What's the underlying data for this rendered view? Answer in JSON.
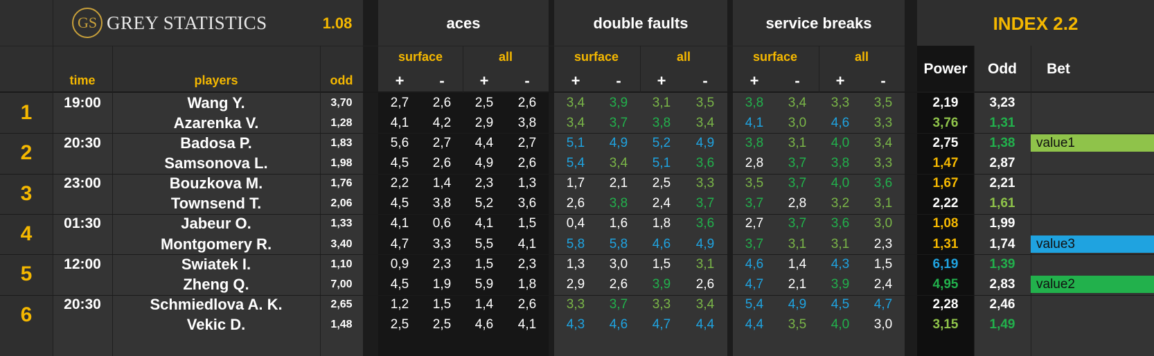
{
  "header": {
    "brand_initials": "GS",
    "brand_name": "GREY STATISTICS",
    "version": "1.08",
    "group_aces": "aces",
    "group_double_faults": "double faults",
    "group_service_breaks": "service breaks",
    "index_title": "INDEX 2.2",
    "sub_surface": "surface",
    "sub_all": "all",
    "plus": "+",
    "minus": "-",
    "col_time": "time",
    "col_players": "players",
    "col_odd": "odd",
    "col_power": "Power",
    "col_odd2": "Odd",
    "col_bet": "Bet"
  },
  "colors": {
    "background": "#1c1c1c",
    "header_bg": "#2f2f2f",
    "row_bg": "#333333",
    "aces_bg": "#151515",
    "index_bg": "#0d0d0d",
    "accent": "#f5b800",
    "green": "#7ab648",
    "dark_green": "#22b14c",
    "blue": "#1fa3e0"
  },
  "matches": [
    {
      "num": "1",
      "time": "19:00",
      "bet": "",
      "p": [
        {
          "name": "Wang Y.",
          "odd": "3,70",
          "aces": [
            "2,7",
            "2,6",
            "2,5",
            "2,6"
          ],
          "df": [
            [
              "3,4",
              "g"
            ],
            [
              "3,9",
              "dg"
            ],
            [
              "3,1",
              "g"
            ],
            [
              "3,5",
              "g"
            ]
          ],
          "sb": [
            [
              "3,8",
              "dg"
            ],
            [
              "3,4",
              "g"
            ],
            [
              "3,3",
              "g"
            ],
            [
              "3,5",
              "g"
            ]
          ],
          "power": [
            "2,19",
            "w"
          ],
          "odd2": [
            "3,23",
            "w"
          ]
        },
        {
          "name": "Azarenka V.",
          "odd": "1,28",
          "aces": [
            "4,1",
            "4,2",
            "2,9",
            "3,8"
          ],
          "df": [
            [
              "3,4",
              "g"
            ],
            [
              "3,7",
              "dg"
            ],
            [
              "3,8",
              "dg"
            ],
            [
              "3,4",
              "g"
            ]
          ],
          "sb": [
            [
              "4,1",
              "b"
            ],
            [
              "3,0",
              "g"
            ],
            [
              "4,6",
              "b"
            ],
            [
              "3,3",
              "g"
            ]
          ],
          "power": [
            "3,76",
            "lg"
          ],
          "odd2": [
            "1,31",
            "dg"
          ]
        }
      ]
    },
    {
      "num": "2",
      "time": "20:30",
      "bet": "value1",
      "p": [
        {
          "name": "Badosa P.",
          "odd": "1,83",
          "aces": [
            "5,6",
            "2,7",
            "4,4",
            "2,7"
          ],
          "df": [
            [
              "5,1",
              "b"
            ],
            [
              "4,9",
              "b"
            ],
            [
              "5,2",
              "b"
            ],
            [
              "4,9",
              "b"
            ]
          ],
          "sb": [
            [
              "3,8",
              "dg"
            ],
            [
              "3,1",
              "g"
            ],
            [
              "4,0",
              "dg"
            ],
            [
              "3,4",
              "g"
            ]
          ],
          "power": [
            "2,75",
            "w"
          ],
          "odd2": [
            "1,38",
            "dg"
          ]
        },
        {
          "name": "Samsonova L.",
          "odd": "1,98",
          "aces": [
            "4,5",
            "2,6",
            "4,9",
            "2,6"
          ],
          "df": [
            [
              "5,4",
              "b"
            ],
            [
              "3,4",
              "g"
            ],
            [
              "5,1",
              "b"
            ],
            [
              "3,6",
              "dg"
            ]
          ],
          "sb": [
            [
              "2,8",
              "w"
            ],
            [
              "3,7",
              "dg"
            ],
            [
              "3,8",
              "dg"
            ],
            [
              "3,3",
              "g"
            ]
          ],
          "power": [
            "1,47",
            "y"
          ],
          "odd2": [
            "2,87",
            "w"
          ]
        }
      ]
    },
    {
      "num": "3",
      "time": "23:00",
      "bet": "",
      "p": [
        {
          "name": "Bouzkova M.",
          "odd": "1,76",
          "aces": [
            "2,2",
            "1,4",
            "2,3",
            "1,3"
          ],
          "df": [
            [
              "1,7",
              "w"
            ],
            [
              "2,1",
              "w"
            ],
            [
              "2,5",
              "w"
            ],
            [
              "3,3",
              "g"
            ]
          ],
          "sb": [
            [
              "3,5",
              "g"
            ],
            [
              "3,7",
              "dg"
            ],
            [
              "4,0",
              "dg"
            ],
            [
              "3,6",
              "dg"
            ]
          ],
          "power": [
            "1,67",
            "y"
          ],
          "odd2": [
            "2,21",
            "w"
          ]
        },
        {
          "name": "Townsend T.",
          "odd": "2,06",
          "aces": [
            "4,5",
            "3,8",
            "5,2",
            "3,6"
          ],
          "df": [
            [
              "2,6",
              "w"
            ],
            [
              "3,8",
              "dg"
            ],
            [
              "2,4",
              "w"
            ],
            [
              "3,7",
              "dg"
            ]
          ],
          "sb": [
            [
              "3,7",
              "dg"
            ],
            [
              "2,8",
              "w"
            ],
            [
              "3,2",
              "g"
            ],
            [
              "3,1",
              "g"
            ]
          ],
          "power": [
            "2,22",
            "w"
          ],
          "odd2": [
            "1,61",
            "lg"
          ]
        }
      ]
    },
    {
      "num": "4",
      "time": "01:30",
      "bet": "",
      "p": [
        {
          "name": "Jabeur O.",
          "odd": "1,33",
          "aces": [
            "4,1",
            "0,6",
            "4,1",
            "1,5"
          ],
          "df": [
            [
              "0,4",
              "w"
            ],
            [
              "1,6",
              "w"
            ],
            [
              "1,8",
              "w"
            ],
            [
              "3,6",
              "dg"
            ]
          ],
          "sb": [
            [
              "2,7",
              "w"
            ],
            [
              "3,7",
              "dg"
            ],
            [
              "3,6",
              "dg"
            ],
            [
              "3,0",
              "g"
            ]
          ],
          "power": [
            "1,08",
            "y"
          ],
          "odd2": [
            "1,99",
            "w"
          ]
        },
        {
          "name": "Montgomery R.",
          "odd": "3,40",
          "aces": [
            "4,7",
            "3,3",
            "5,5",
            "4,1"
          ],
          "df": [
            [
              "5,8",
              "b"
            ],
            [
              "5,8",
              "b"
            ],
            [
              "4,6",
              "b"
            ],
            [
              "4,9",
              "b"
            ]
          ],
          "sb": [
            [
              "3,7",
              "dg"
            ],
            [
              "3,1",
              "g"
            ],
            [
              "3,1",
              "g"
            ],
            [
              "2,3",
              "w"
            ]
          ],
          "power": [
            "1,31",
            "y"
          ],
          "odd2": [
            "1,74",
            "w"
          ]
        }
      ]
    },
    {
      "num": "5",
      "time": "12:00",
      "bet": "",
      "p": [
        {
          "name": "Swiatek I.",
          "odd": "1,10",
          "aces": [
            "0,9",
            "2,3",
            "1,5",
            "2,3"
          ],
          "df": [
            [
              "1,3",
              "w"
            ],
            [
              "3,0",
              "w"
            ],
            [
              "1,5",
              "w"
            ],
            [
              "3,1",
              "g"
            ]
          ],
          "sb": [
            [
              "4,6",
              "b"
            ],
            [
              "1,4",
              "w"
            ],
            [
              "4,3",
              "b"
            ],
            [
              "1,5",
              "w"
            ]
          ],
          "power": [
            "6,19",
            "b"
          ],
          "odd2": [
            "1,39",
            "dg"
          ]
        },
        {
          "name": "Zheng Q.",
          "odd": "7,00",
          "aces": [
            "4,5",
            "1,9",
            "5,9",
            "1,8"
          ],
          "df": [
            [
              "2,9",
              "w"
            ],
            [
              "2,6",
              "w"
            ],
            [
              "3,9",
              "dg"
            ],
            [
              "2,6",
              "w"
            ]
          ],
          "sb": [
            [
              "4,7",
              "b"
            ],
            [
              "2,1",
              "w"
            ],
            [
              "3,9",
              "dg"
            ],
            [
              "2,4",
              "w"
            ]
          ],
          "power": [
            "4,95",
            "dg"
          ],
          "odd2": [
            "2,83",
            "w"
          ]
        }
      ]
    },
    {
      "num": "6",
      "time": "20:30",
      "bet": "",
      "p": [
        {
          "name": "Schmiedlova A. K.",
          "odd": "2,65",
          "aces": [
            "1,2",
            "1,5",
            "1,4",
            "2,6"
          ],
          "df": [
            [
              "3,3",
              "g"
            ],
            [
              "3,7",
              "dg"
            ],
            [
              "3,3",
              "g"
            ],
            [
              "3,4",
              "g"
            ]
          ],
          "sb": [
            [
              "5,4",
              "b"
            ],
            [
              "4,9",
              "b"
            ],
            [
              "4,5",
              "b"
            ],
            [
              "4,7",
              "b"
            ]
          ],
          "power": [
            "2,28",
            "w"
          ],
          "odd2": [
            "2,46",
            "w"
          ]
        },
        {
          "name": "Vekic D.",
          "odd": "1,48",
          "aces": [
            "2,5",
            "2,5",
            "4,6",
            "4,1"
          ],
          "df": [
            [
              "4,3",
              "b"
            ],
            [
              "4,6",
              "b"
            ],
            [
              "4,7",
              "b"
            ],
            [
              "4,4",
              "b"
            ]
          ],
          "sb": [
            [
              "4,4",
              "b"
            ],
            [
              "3,5",
              "g"
            ],
            [
              "4,0",
              "dg"
            ],
            [
              "3,0",
              "w"
            ]
          ],
          "power": [
            "3,15",
            "lg"
          ],
          "odd2": [
            "1,49",
            "dg"
          ]
        }
      ]
    }
  ],
  "bets": [
    {
      "label": "value1",
      "color": "#8fc34a",
      "match": 1,
      "player": 0
    },
    {
      "label": "value3",
      "color": "#1fa3e0",
      "match": 3,
      "player": 1
    },
    {
      "label": "value2",
      "color": "#22b14c",
      "match": 4,
      "player": 1
    }
  ]
}
